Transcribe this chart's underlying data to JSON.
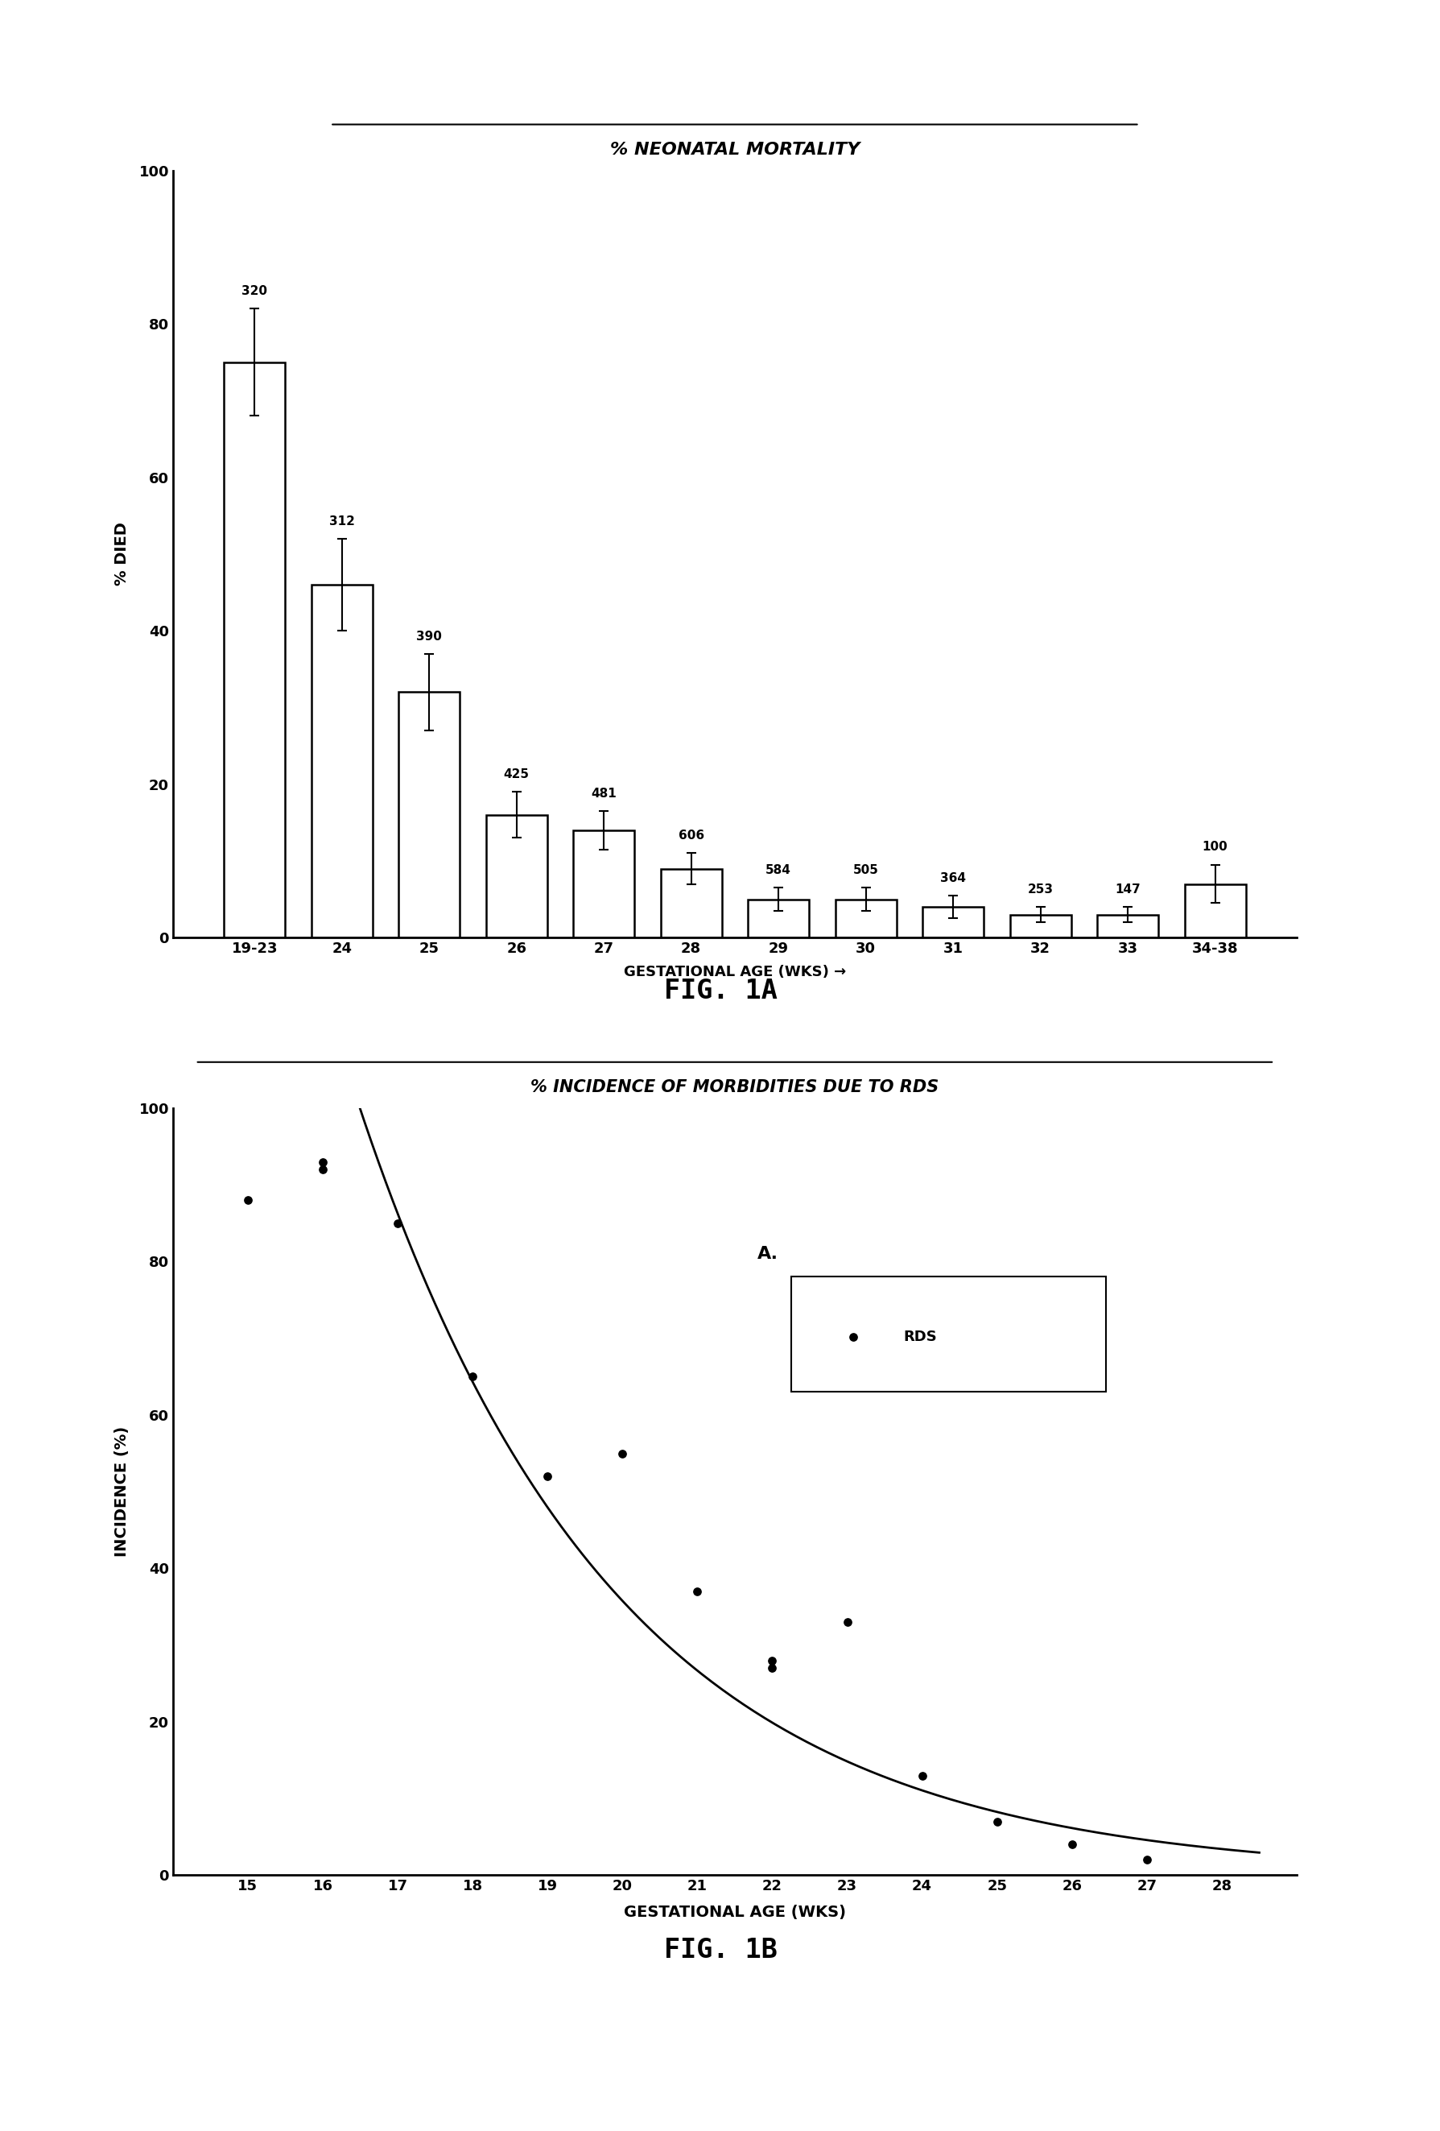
{
  "fig1a": {
    "title": "% NEONATAL MORTALITY",
    "xlabel": "GESTATIONAL AGE (WKS) →",
    "ylabel": "% DIED",
    "categories": [
      "19-23",
      "24",
      "25",
      "26",
      "27",
      "28",
      "29",
      "30",
      "31",
      "32",
      "33",
      "34-38"
    ],
    "bar_heights": [
      75,
      46,
      32,
      16,
      14,
      9,
      5,
      5,
      4,
      3,
      3,
      7
    ],
    "bar_errors": [
      7,
      6,
      5,
      3,
      2.5,
      2,
      1.5,
      1.5,
      1.5,
      1,
      1,
      2.5
    ],
    "n_labels": [
      "320",
      "312",
      "390",
      "425",
      "481",
      "606",
      "584",
      "505",
      "364",
      "253",
      "147",
      "100"
    ],
    "ylim": [
      0,
      100
    ],
    "yticks": [
      0,
      20,
      40,
      60,
      80,
      100
    ]
  },
  "fig1b": {
    "title": "% INCIDENCE OF MORBIDITIES DUE TO RDS",
    "xlabel": "GESTATIONAL AGE (WKS)",
    "ylabel": "INCIDENCE (%)",
    "scatter_x": [
      15,
      16,
      16,
      17,
      18,
      19,
      20,
      21,
      22,
      22,
      23,
      24,
      25,
      26,
      27
    ],
    "scatter_y": [
      88,
      93,
      92,
      85,
      65,
      52,
      55,
      37,
      28,
      27,
      33,
      13,
      7,
      4,
      2
    ],
    "curve_x_start": 14.5,
    "curve_x_end": 28.5,
    "annotation": "A.",
    "legend_label": "RDS",
    "ylim": [
      0,
      100
    ],
    "xlim": [
      14,
      29
    ],
    "yticks": [
      0,
      20,
      40,
      60,
      80,
      100
    ],
    "xticks": [
      15,
      16,
      17,
      18,
      19,
      20,
      21,
      22,
      23,
      24,
      25,
      26,
      27,
      28
    ]
  },
  "background_color": "#ffffff",
  "bar_facecolor": "#ffffff",
  "bar_edgecolor": "#000000",
  "text_color": "#000000"
}
